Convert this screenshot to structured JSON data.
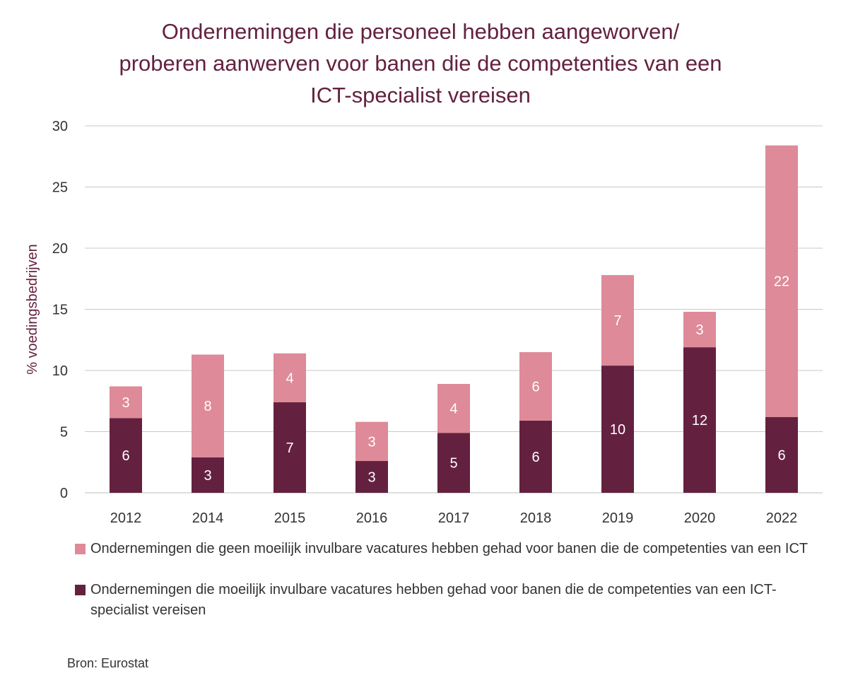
{
  "title_lines": [
    "Ondernemingen die personeel hebben aangeworven/",
    "proberen aanwerven voor banen die de competenties van een",
    "ICT-specialist vereisen"
  ],
  "source": "Bron: Eurostat",
  "colors": {
    "title": "#64213f",
    "dark": "#64213f",
    "light": "#de8a98",
    "grid": "#c8c8c8",
    "text": "#333333"
  },
  "chart_data": {
    "type": "bar",
    "stacked": true,
    "title": "Ondernemingen die personeel hebben aangeworven/ proberen aanwerven voor banen die de competenties van een ICT-specialist vereisen",
    "xlabel": "",
    "ylabel": "% voedingsbedrijven",
    "ylim": [
      0,
      30
    ],
    "yticks": [
      0,
      5,
      10,
      15,
      20,
      25,
      30
    ],
    "grid": true,
    "legend_position": "bottom",
    "categories": [
      "2012",
      "2014",
      "2015",
      "2016",
      "2017",
      "2018",
      "2019",
      "2020",
      "2022"
    ],
    "series": [
      {
        "name": "Ondernemingen die moeilijk invulbare vacatures hebben gehad voor banen die de competenties van een ICT-specialist vereisen",
        "color": "#64213f",
        "values": [
          6.1,
          2.9,
          7.4,
          2.6,
          4.9,
          5.9,
          10.4,
          11.9,
          6.2
        ],
        "labels": [
          "6",
          "3",
          "7",
          "3",
          "5",
          "6",
          "10",
          "12",
          "6"
        ]
      },
      {
        "name": "Ondernemingen die geen moeilijk invulbare vacatures hebben gehad voor banen die de competenties van een ICT",
        "color": "#de8a98",
        "values": [
          2.6,
          8.4,
          4.0,
          3.2,
          4.0,
          5.6,
          7.4,
          2.9,
          22.2
        ],
        "labels": [
          "3",
          "8",
          "4",
          "3",
          "4",
          "6",
          "7",
          "3",
          "22"
        ]
      }
    ]
  }
}
